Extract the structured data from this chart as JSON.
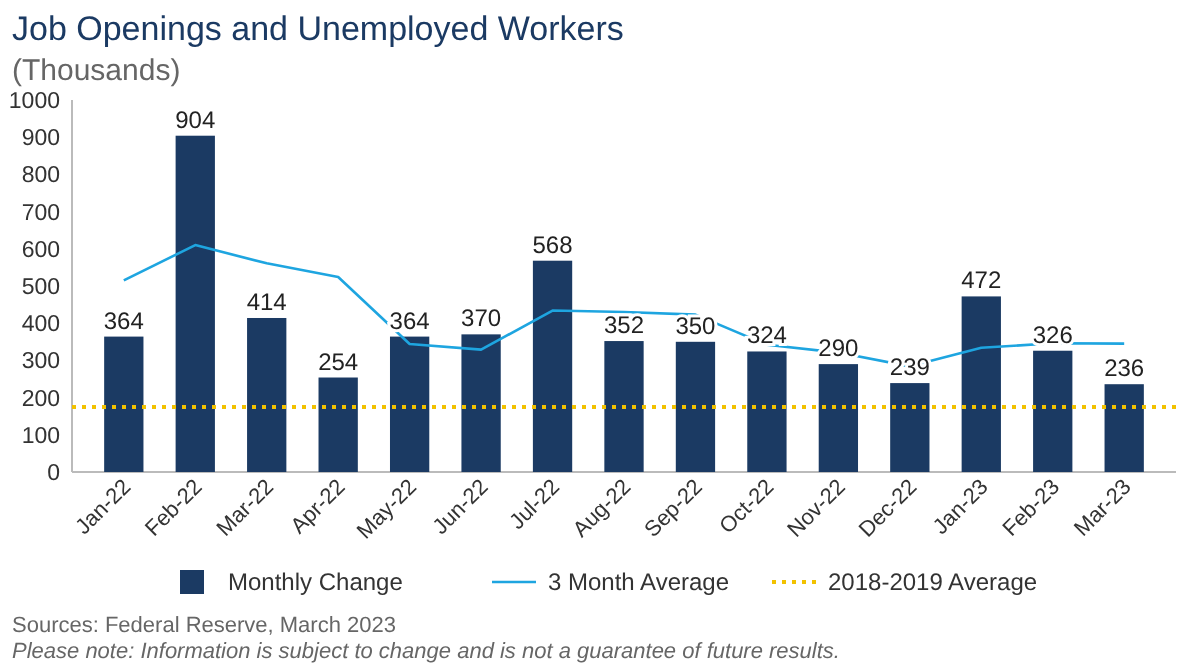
{
  "chart_data": {
    "type": "bar",
    "title": "Job Openings and Unemployed Workers",
    "subtitle": "(Thousands)",
    "categories": [
      "Jan-22",
      "Feb-22",
      "Mar-22",
      "Apr-22",
      "May-22",
      "Jun-22",
      "Jul-22",
      "Aug-22",
      "Sep-22",
      "Oct-22",
      "Nov-22",
      "Dec-22",
      "Jan-23",
      "Feb-23",
      "Mar-23"
    ],
    "series": [
      {
        "name": "Monthly Change",
        "color": "#1b3a63",
        "values": [
          364,
          904,
          414,
          254,
          364,
          370,
          568,
          352,
          350,
          324,
          290,
          239,
          472,
          326,
          236
        ],
        "value_labels": [
          "364",
          "904",
          "414",
          "254",
          "364",
          "370",
          "568",
          "352",
          "350",
          "324",
          "290",
          "239",
          "472",
          "326",
          "236"
        ]
      },
      {
        "name": "3 Month Average",
        "type": "line",
        "color": "#1ea5e0",
        "values": [
          515,
          610,
          561,
          524,
          344,
          329,
          434,
          430,
          423,
          342,
          321,
          284,
          334,
          346,
          345
        ]
      }
    ],
    "ref_lines": [
      {
        "axis": "y",
        "value": 175,
        "label": "2018-2019 Average",
        "color": "#f2c200",
        "line_style": "dotted"
      }
    ],
    "ylim": [
      0,
      1000
    ],
    "yticks": [
      0,
      100,
      200,
      300,
      400,
      500,
      600,
      700,
      800,
      900,
      1000
    ],
    "grid": false,
    "legend": "bottom",
    "annotations": [
      "Sources: Federal Reserve, March 2023",
      "Please note: Information is subject to change and is not a guarantee of future results."
    ]
  }
}
